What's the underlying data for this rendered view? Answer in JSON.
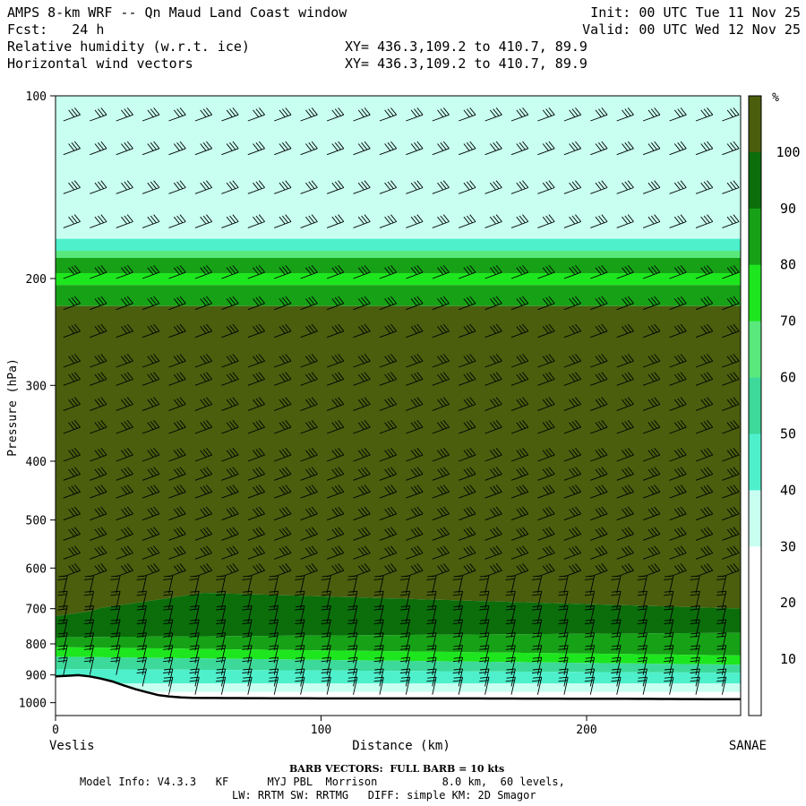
{
  "header": {
    "title": "AMPS 8-km WRF -- Qn Maud Land Coast window",
    "fcst": "Fcst:   24 h",
    "field1": "Relative humidity (w.r.t. ice)",
    "field2": "Horizontal wind vectors",
    "xy1": "XY= 436.3,109.2 to 410.7, 89.9",
    "xy2": "XY= 436.3,109.2 to 410.7, 89.9",
    "init": "Init: 00 UTC Tue 11 Nov 25",
    "valid": "Valid: 00 UTC Wed 12 Nov 25"
  },
  "footer": {
    "barb_note": "BARB VECTORS:  FULL BARB = 10 kts",
    "model_line1": "Model Info: V4.3.3   KF      MYJ PBL  Morrison          8.0 km,  60 levels,",
    "model_line2": "LW: RRTM SW: RRTMG   DIFF: simple KM: 2D Smagor"
  },
  "colors": {
    "c100": "#4a5e0e",
    "c90": "#0b6e0b",
    "c80": "#17a117",
    "c70": "#1ee61e",
    "c60": "#59e87c",
    "c50": "#3dd99a",
    "c40": "#4ef0cc",
    "c30": "#c8fff0",
    "c20": "#ffffff"
  },
  "chart_data": {
    "type": "heatmap",
    "title": "Relative humidity (w.r.t. ice)",
    "xlabel": "Distance (km)",
    "ylabel": "Pressure (hPa)",
    "xlim": [
      0,
      258
    ],
    "ylim": [
      1050,
      100
    ],
    "y_scale": "log",
    "x_ticks": [
      0,
      100,
      200
    ],
    "y_ticks": [
      100,
      200,
      300,
      400,
      500,
      600,
      700,
      800,
      900,
      1000
    ],
    "left_endpoint": "Veslis",
    "right_endpoint": "SANAE",
    "colorbar": {
      "unit": "%",
      "levels": [
        10,
        20,
        30,
        40,
        50,
        60,
        70,
        80,
        90,
        100
      ],
      "bins": [
        {
          "range": "<10",
          "color": "#ffffff"
        },
        {
          "range": "10-20",
          "color": "#ffffff"
        },
        {
          "range": "20-30",
          "color": "#ffffff"
        },
        {
          "range": "30-40",
          "color": "#c8fff0"
        },
        {
          "range": "40-50",
          "color": "#4ef0cc"
        },
        {
          "range": "50-60",
          "color": "#3dd99a"
        },
        {
          "range": "60-70",
          "color": "#59e87c"
        },
        {
          "range": "70-80",
          "color": "#1ee61e"
        },
        {
          "range": "80-90",
          "color": "#17a117"
        },
        {
          "range": "90-100",
          "color": "#0b6e0b"
        },
        {
          "range": ">100",
          "color": "#4a5e0e"
        }
      ]
    },
    "terrain_surface_pressure": [
      {
        "x": 0,
        "p": 905
      },
      {
        "x": 10,
        "p": 900
      },
      {
        "x": 20,
        "p": 918
      },
      {
        "x": 30,
        "p": 950
      },
      {
        "x": 40,
        "p": 975
      },
      {
        "x": 50,
        "p": 982
      },
      {
        "x": 100,
        "p": 984
      },
      {
        "x": 150,
        "p": 984
      },
      {
        "x": 200,
        "p": 985
      },
      {
        "x": 258,
        "p": 987
      }
    ],
    "rh_layers": [
      {
        "p_range": [
          100,
          175
        ],
        "rh": "<30"
      },
      {
        "p_range": [
          175,
          230
        ],
        "rh": "60-100"
      },
      {
        "p_range": [
          230,
          700
        ],
        "rh": ">100"
      },
      {
        "p_range": [
          700,
          800
        ],
        "rh": "90-100"
      },
      {
        "p_range": [
          800,
          900
        ],
        "rh": "40-90"
      },
      {
        "p_range": [
          900,
          985
        ],
        "rh": "30-90"
      }
    ],
    "barb_rows_hPa": [
      110,
      125,
      145,
      165,
      200,
      225,
      250,
      280,
      300,
      330,
      360,
      400,
      430,
      460,
      500,
      540,
      580,
      620,
      660,
      700,
      740,
      780,
      820,
      860,
      900,
      940,
      970
    ]
  }
}
